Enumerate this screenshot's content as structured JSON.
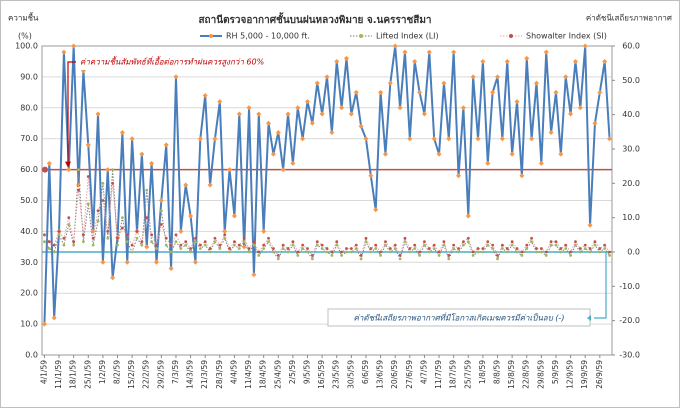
{
  "chart_data": {
    "type": "line",
    "title": "สถานีตรวจอากาศชั้นบนฝนหลวงพิมาย จ.นครราชสีมา",
    "y_label": "ความชื้น",
    "y_unit": "(%)",
    "y2_label": "ค่าดัชนีเสถียรภาพอากาศ",
    "categories": [
      "4/1/59",
      null,
      null,
      "11/1/59",
      null,
      null,
      "18/1/59",
      null,
      null,
      "25/1/59",
      null,
      null,
      "1/2/59",
      null,
      null,
      "8/2/59",
      null,
      null,
      "15/2/59",
      null,
      null,
      "22/2/59",
      null,
      null,
      "29/2/59",
      null,
      null,
      "7/3/59",
      null,
      null,
      "14/3/59",
      null,
      null,
      "21/3/59",
      null,
      null,
      "28/3/59",
      null,
      null,
      "4/4/59",
      null,
      null,
      "11/4/59",
      null,
      null,
      "18/4/59",
      null,
      null,
      "25/4/59",
      null,
      null,
      "2/5/59",
      null,
      null,
      "9/5/59",
      null,
      null,
      "16/5/59",
      null,
      null,
      "23/5/59",
      null,
      null,
      "30/5/59",
      null,
      null,
      "6/6/59",
      null,
      null,
      "13/6/59",
      null,
      null,
      "20/6/59",
      null,
      null,
      "27/6/59",
      null,
      null,
      "4/7/59",
      null,
      null,
      "11/7/59",
      null,
      null,
      "18/7/59",
      null,
      null,
      "25/7/59",
      null,
      null,
      "1/8/59",
      null,
      null,
      "8/8/59",
      null,
      null,
      "15/8/59",
      null,
      null,
      "22/8/59",
      null,
      null,
      "29/8/59",
      null,
      null,
      "5/9/59",
      null,
      null,
      "12/9/59",
      null,
      null,
      "19/9/59",
      null,
      null,
      "26/9/59",
      null,
      null
    ],
    "series": [
      {
        "name": "RH 5,000 - 10,000 ft.",
        "color": "#4a7ebb",
        "marker_color": "#f79646",
        "style": "solid",
        "axis": "y",
        "values": [
          10,
          62,
          12,
          40,
          98,
          60,
          100,
          55,
          92,
          68,
          40,
          78,
          30,
          60,
          25,
          38,
          72,
          30,
          70,
          40,
          65,
          35,
          62,
          30,
          50,
          68,
          28,
          90,
          40,
          55,
          45,
          30,
          70,
          84,
          55,
          70,
          82,
          40,
          60,
          45,
          78,
          35,
          80,
          26,
          78,
          40,
          75,
          65,
          72,
          60,
          78,
          62,
          80,
          70,
          82,
          75,
          88,
          78,
          90,
          72,
          95,
          80,
          96,
          78,
          85,
          74,
          70,
          58,
          47,
          85,
          65,
          88,
          100,
          80,
          98,
          70,
          95,
          85,
          78,
          98,
          70,
          65,
          88,
          70,
          98,
          58,
          80,
          45,
          90,
          70,
          95,
          62,
          85,
          90,
          70,
          95,
          65,
          82,
          58,
          96,
          70,
          88,
          62,
          98,
          72,
          85,
          65,
          90,
          78,
          95,
          80,
          100,
          42,
          75,
          85,
          95,
          70
        ]
      },
      {
        "name": "Lifted Index (LI)",
        "color": "#7f7f7f",
        "marker_color": "#9bbb59",
        "style": "dotted",
        "axis": "y2",
        "values": [
          3,
          1,
          0,
          5,
          2,
          8,
          2,
          24,
          3,
          14,
          2,
          9,
          20,
          4,
          24,
          2,
          10,
          3,
          0,
          4,
          2,
          18,
          3,
          1,
          12,
          2,
          0,
          3,
          1,
          2,
          0,
          3,
          1,
          2,
          0,
          3,
          1,
          4,
          0,
          2,
          1,
          3,
          0,
          2,
          -1,
          1,
          3,
          0,
          -2,
          1,
          0,
          2,
          -1,
          1,
          0,
          -2,
          2,
          1,
          0,
          -1,
          2,
          -1,
          0,
          0,
          1,
          -2,
          3,
          0,
          1,
          -1,
          2,
          0,
          1,
          -2,
          3,
          0,
          1,
          -1,
          2,
          0,
          1,
          -1,
          2,
          -2,
          1,
          0,
          2,
          3,
          -1,
          0,
          0,
          2,
          1,
          -2,
          1,
          0,
          2,
          0,
          -1,
          1,
          3,
          0,
          0,
          -1,
          2,
          2,
          0,
          1,
          -1,
          2,
          0,
          1,
          0,
          2,
          0,
          1,
          -1
        ]
      },
      {
        "name": "Showalter Index (SI)",
        "color": "#e6a0a0",
        "marker_color": "#c0504d",
        "style": "dotted",
        "axis": "y2",
        "values": [
          5,
          3,
          2,
          6,
          4,
          10,
          3,
          18,
          5,
          22,
          4,
          12,
          15,
          6,
          20,
          4,
          7,
          5,
          2,
          6,
          3,
          10,
          5,
          2,
          8,
          4,
          2,
          5,
          2,
          3,
          1,
          4,
          2,
          3,
          1,
          4,
          2,
          5,
          1,
          3,
          2,
          4,
          1,
          3,
          0,
          2,
          4,
          1,
          -1,
          2,
          1,
          3,
          0,
          2,
          1,
          -1,
          3,
          2,
          1,
          0,
          3,
          0,
          1,
          1,
          2,
          -1,
          4,
          1,
          2,
          0,
          3,
          1,
          2,
          -1,
          4,
          1,
          2,
          0,
          3,
          1,
          2,
          0,
          3,
          -1,
          2,
          1,
          3,
          4,
          0,
          1,
          1,
          3,
          2,
          -1,
          2,
          1,
          3,
          1,
          0,
          2,
          4,
          1,
          1,
          0,
          3,
          3,
          1,
          2,
          0,
          3,
          1,
          2,
          1,
          3,
          1,
          2,
          0
        ]
      }
    ],
    "ylim": [
      0,
      100
    ],
    "yticks": [
      {
        "value": 0,
        "label": "0.0"
      },
      {
        "value": 10,
        "label": "10.0"
      },
      {
        "value": 20,
        "label": "20.0"
      },
      {
        "value": 30,
        "label": "30.0"
      },
      {
        "value": 40,
        "label": "40.0"
      },
      {
        "value": 50,
        "label": "50.0"
      },
      {
        "value": 60,
        "label": "60.0"
      },
      {
        "value": 70,
        "label": "70.0"
      },
      {
        "value": 80,
        "label": "80.0"
      },
      {
        "value": 90,
        "label": "90.0"
      },
      {
        "value": 100,
        "label": "100.0"
      }
    ],
    "y2lim": [
      -30,
      60
    ],
    "y2ticks": [
      {
        "value": -30,
        "label": "-30.0"
      },
      {
        "value": -20,
        "label": "-20.0"
      },
      {
        "value": -10,
        "label": "-10.0"
      },
      {
        "value": 0,
        "label": "0.0"
      },
      {
        "value": 10,
        "label": "10.0"
      },
      {
        "value": 20,
        "label": "20.0"
      },
      {
        "value": 30,
        "label": "30.0"
      },
      {
        "value": 40,
        "label": "40.0"
      },
      {
        "value": 50,
        "label": "50.0"
      },
      {
        "value": 60,
        "label": "60.0"
      }
    ],
    "grid": true,
    "legend_position": "top",
    "reference_lines": [
      {
        "axis": "y",
        "value": 60,
        "color": "#c0504d"
      },
      {
        "axis": "y2",
        "value": 0,
        "color": "#4bacc6"
      }
    ],
    "annotations": [
      {
        "text": "ค่าความชื้นสัมพัทธ์ที่เอื้อต่อการทำฝนควรสูงกว่า 60%",
        "color": "#c00000"
      },
      {
        "text": "ค่าดัชนีเสถียรภาพอากาศที่มีโอกาสเกิดเมฆควรมีค่าเป็นลบ (-)",
        "color": "#1f4e79"
      }
    ]
  }
}
